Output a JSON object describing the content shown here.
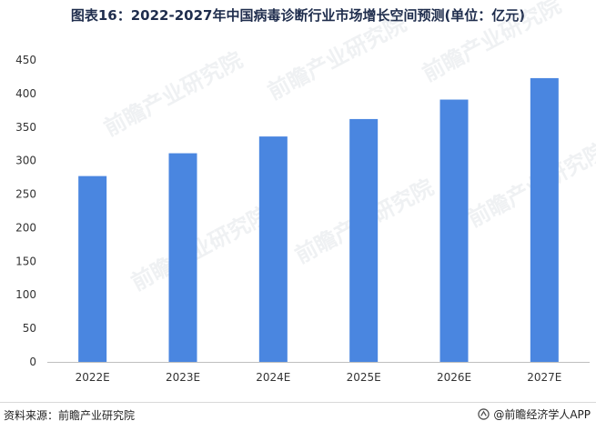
{
  "title": "图表16：2022-2027年中国病毒诊断行业市场增长空间预测(单位：亿元)",
  "footer": {
    "source": "资料来源：前瞻产业研究院",
    "brand": "@前瞻经济学人APP"
  },
  "watermark_text": "前瞻产业研究院",
  "colors": {
    "bar": "#4a86e0",
    "axis": "#bfbfbf",
    "tick_text": "#333333",
    "title": "#1f2d4d"
  },
  "chart_data": {
    "type": "bar",
    "title": "图表16：2022-2027年中国病毒诊断行业市场增长空间预测(单位：亿元)",
    "xlabel": "",
    "ylabel": "",
    "categories": [
      "2022E",
      "2023E",
      "2024E",
      "2025E",
      "2026E",
      "2027E"
    ],
    "values": [
      277,
      311,
      336,
      362,
      391,
      423
    ],
    "ylim": [
      0,
      450
    ],
    "yticks": [
      0,
      50,
      100,
      150,
      200,
      250,
      300,
      350,
      400,
      450
    ],
    "grid": false,
    "legend": "none"
  }
}
